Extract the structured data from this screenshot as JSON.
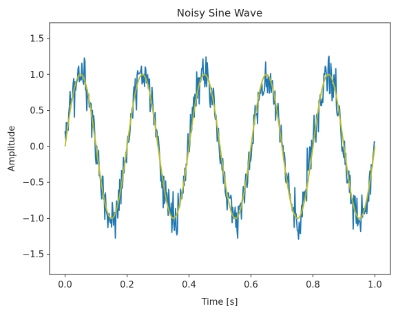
{
  "chart_data": {
    "type": "line",
    "title": "Noisy Sine Wave",
    "xlabel": "Time [s]",
    "ylabel": "Amplitude",
    "xlim": [
      -0.05,
      1.05
    ],
    "ylim": [
      -1.78,
      1.72
    ],
    "x_ticks": [
      0.0,
      0.2,
      0.4,
      0.6,
      0.8,
      1.0
    ],
    "x_tick_labels": [
      "0.0",
      "0.2",
      "0.4",
      "0.6",
      "0.8",
      "1.0"
    ],
    "y_ticks": [
      -1.5,
      -1.0,
      -0.5,
      0.0,
      0.5,
      1.0,
      1.5
    ],
    "y_tick_labels": [
      "−1.5",
      "−1.0",
      "−0.5",
      "0.0",
      "0.5",
      "1.0",
      "1.5"
    ],
    "grid": false,
    "legend": "none",
    "series": [
      {
        "color": "#1f77b4",
        "style": "noisy",
        "frequency_hz": 5,
        "amplitude": 1.0,
        "noise_std": 0.15,
        "num_points": 500
      },
      {
        "color": "#bcbd22",
        "style": "clean",
        "frequency_hz": 5,
        "amplitude": 1.0,
        "num_points": 500
      }
    ]
  }
}
